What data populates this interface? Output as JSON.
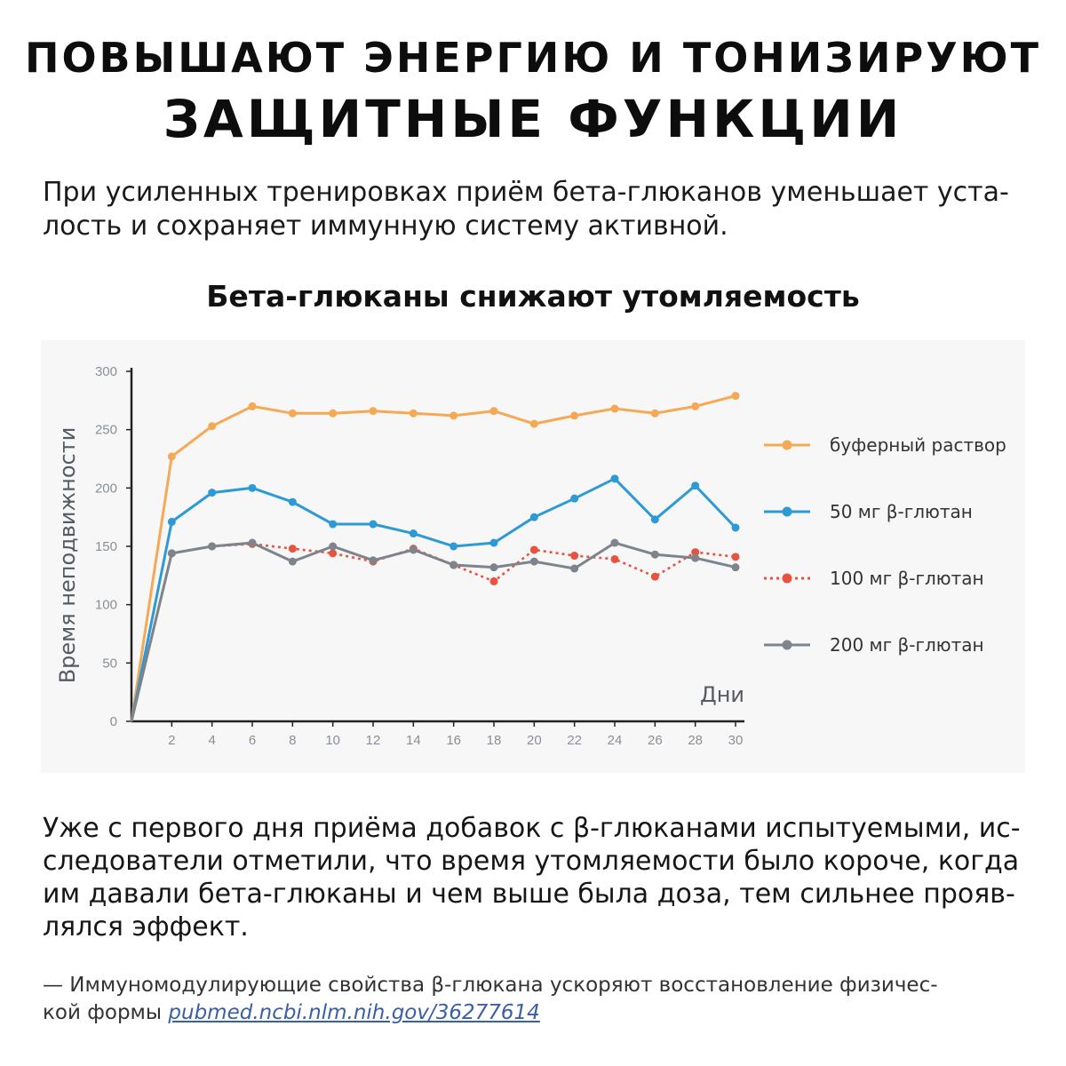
{
  "header": {
    "title_line1": "ПОВЫШАЮТ ЭНЕРГИЮ И ТОНИЗИРУЮТ",
    "title_line2": "ЗАЩИТНЫЕ ФУНКЦИИ"
  },
  "intro": {
    "line1": "При усиленных тренировках приём бета-глюканов уменьшает уста-",
    "line2": "лость и сохраняет иммунную систему активной."
  },
  "chart_heading": "Бета-глюканы снижают утомляемость",
  "chart_data": {
    "type": "line",
    "title": "Бета-глюканы снижают утомляемость",
    "ylabel": "Время неподвижности",
    "xlabel": "Дни",
    "ylim": [
      0,
      300
    ],
    "xlim": [
      0,
      30
    ],
    "y_ticks": [
      0,
      50,
      100,
      150,
      200,
      250,
      300
    ],
    "x_ticks": [
      2,
      4,
      6,
      8,
      10,
      12,
      14,
      16,
      18,
      20,
      22,
      24,
      26,
      28,
      30
    ],
    "x": [
      0,
      2,
      4,
      6,
      8,
      10,
      12,
      14,
      16,
      18,
      20,
      22,
      24,
      26,
      28,
      30
    ],
    "grid": false,
    "legend_position": "right",
    "series": [
      {
        "name": "буферный раствор",
        "color": "#f5a955",
        "style": "solid",
        "values": [
          0,
          227,
          253,
          270,
          264,
          264,
          266,
          264,
          262,
          266,
          255,
          262,
          268,
          264,
          270,
          279
        ]
      },
      {
        "name": "50 мг β-глютан",
        "color": "#2d9ad6",
        "style": "solid",
        "values": [
          0,
          171,
          196,
          200,
          188,
          169,
          169,
          161,
          150,
          153,
          175,
          191,
          208,
          173,
          202,
          166
        ]
      },
      {
        "name": "100 мг β-глютан",
        "color": "#e8533f",
        "style": "dotted",
        "values": [
          0,
          144,
          150,
          152,
          148,
          144,
          137,
          148,
          134,
          120,
          147,
          142,
          139,
          124,
          145,
          141
        ]
      },
      {
        "name": "200 мг β-глютан",
        "color": "#7d848c",
        "style": "solid",
        "values": [
          0,
          144,
          150,
          153,
          137,
          150,
          138,
          147,
          134,
          132,
          137,
          131,
          153,
          143,
          140,
          132
        ]
      }
    ]
  },
  "body_text": {
    "line1": "Уже с первого дня приёма добавок с β-глюканами испытуемыми, ис-",
    "line2": "следователи отметили, что время утомляемости было короче, когда",
    "line3": "им давали бета-глюканы и чем выше была доза, тем сильнее прояв-",
    "line4": "лялся эффект."
  },
  "source": {
    "line1": "— Иммуномодулирующие свойства β-глюкана ускоряют восстановление физичес-",
    "line2_prefix": "кой формы ",
    "link_text": "pubmed.ncbi.nlm.nih.gov/36277614"
  }
}
